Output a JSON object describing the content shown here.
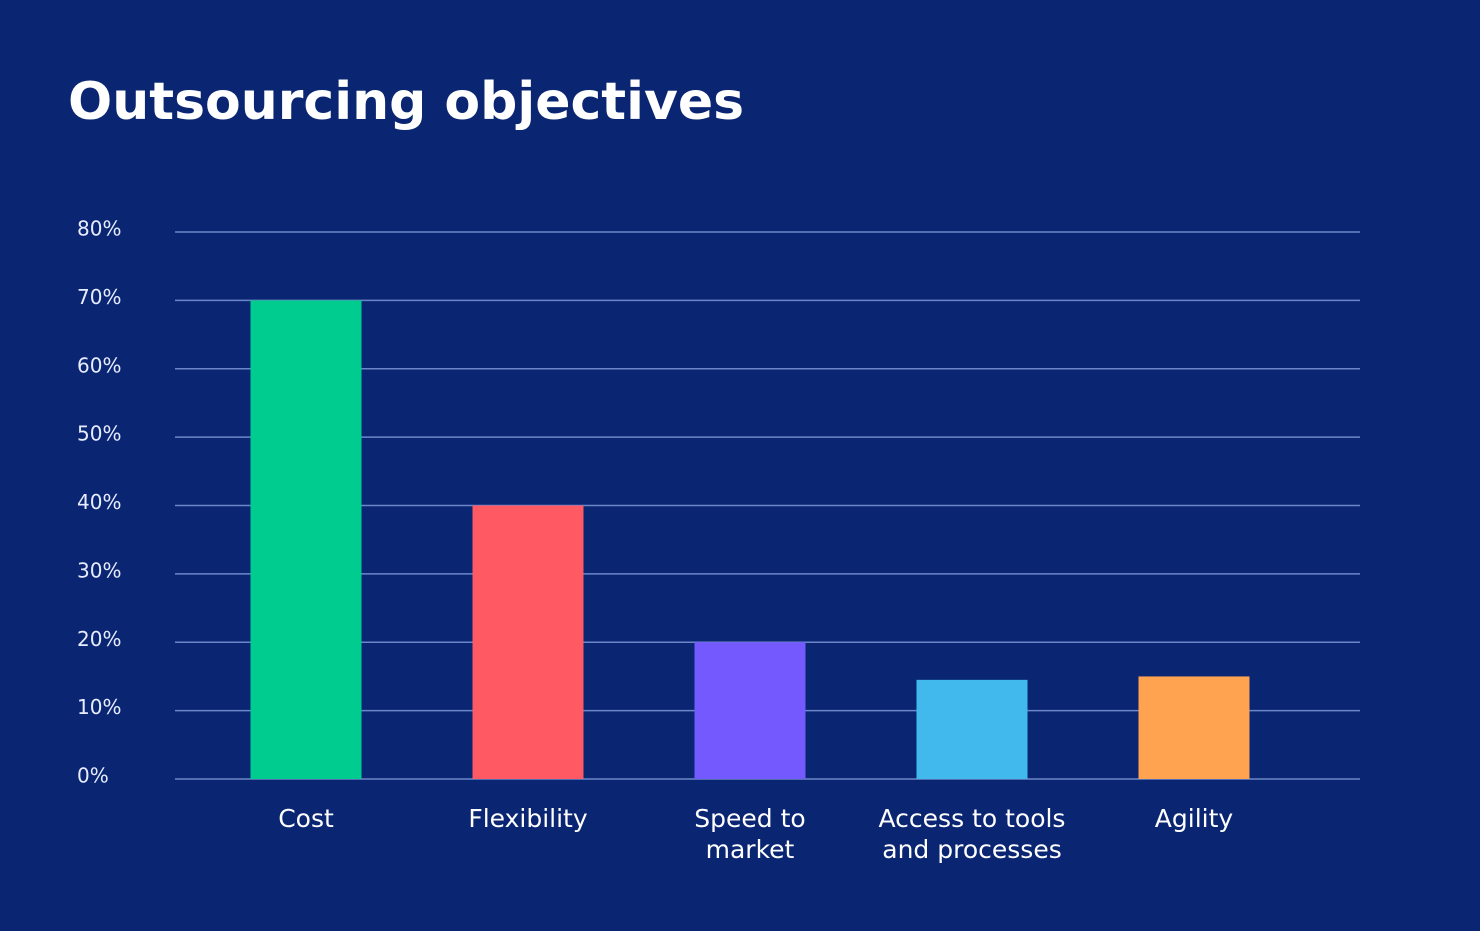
{
  "chart_data": {
    "type": "bar",
    "title": "Outsourcing objectives",
    "categories": [
      "Cost",
      "Flexibility",
      "Speed to\nmarket",
      "Access to tools\nand processes",
      "Agility"
    ],
    "values": [
      70,
      40,
      20,
      14.5,
      15
    ],
    "colors": [
      "#00cc90",
      "#ff5a63",
      "#7459ff",
      "#42b9ec",
      "#ffa350"
    ],
    "ylim": [
      0,
      80
    ],
    "yticks": [
      {
        "value": 0,
        "label": "0%"
      },
      {
        "value": 10,
        "label": "10%"
      },
      {
        "value": 20,
        "label": "20%"
      },
      {
        "value": 30,
        "label": "30%"
      },
      {
        "value": 40,
        "label": "40%"
      },
      {
        "value": 50,
        "label": "50%"
      },
      {
        "value": 60,
        "label": "60%"
      },
      {
        "value": 70,
        "label": "70%"
      },
      {
        "value": 80,
        "label": "80%"
      }
    ],
    "grid": true
  }
}
